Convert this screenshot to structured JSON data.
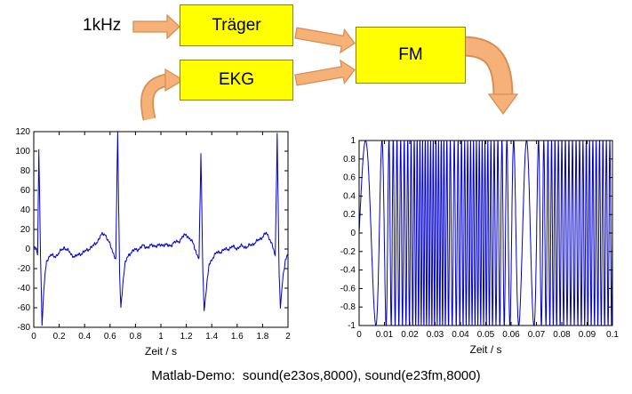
{
  "colors": {
    "box_fill": "#FFFF00",
    "box_border": "#8F8200",
    "arrow_fill": "#F6B178",
    "arrow_border": "#D98E52",
    "plot_line": "#0000CC",
    "axis": "#000000",
    "background": "#FFFFFF"
  },
  "diagram": {
    "input_label": "1kHz",
    "boxes": [
      {
        "id": "traeger",
        "label": "Träger"
      },
      {
        "id": "ekg",
        "label": "EKG"
      },
      {
        "id": "fm",
        "label": "FM"
      }
    ],
    "arrows": [
      "1khz-to-traeger",
      "feed-into-ekg",
      "traeger-to-fm",
      "ekg-to-fm",
      "fm-output-down"
    ]
  },
  "caption": "Matlab-Demo:  sound(e23os,8000), sound(e23fm,8000)",
  "chart_data": [
    {
      "id": "ekg_plot",
      "type": "line",
      "title": "",
      "series_name": "EKG signal",
      "xlabel": "Zeit / s",
      "ylabel": "",
      "xlim": [
        0,
        2
      ],
      "ylim": [
        -80,
        120
      ],
      "xticks": [
        0,
        0.2,
        0.4,
        0.6,
        0.8,
        1,
        1.2,
        1.4,
        1.6,
        1.8,
        2
      ],
      "xtick_labels": [
        "0",
        "0.2",
        "0.4",
        "0.6",
        "0.8",
        "1",
        "1.2",
        "1.4",
        "1.6",
        "1.8",
        "2"
      ],
      "yticks": [
        -80,
        -60,
        -40,
        -20,
        0,
        20,
        40,
        60,
        80,
        100,
        120
      ],
      "ytick_labels": [
        "-80",
        "-60",
        "-40",
        "-20",
        "0",
        "20",
        "40",
        "60",
        "80",
        "100",
        "120"
      ],
      "grid": false,
      "legend": null,
      "line_color": "#0000CC",
      "noise_amp": 2.2,
      "samples": 900,
      "keypoints": [
        [
          0,
          2
        ],
        [
          0.02,
          0
        ],
        [
          0.03,
          -8
        ],
        [
          0.04,
          103
        ],
        [
          0.055,
          -20
        ],
        [
          0.065,
          -78
        ],
        [
          0.08,
          -40
        ],
        [
          0.1,
          -12
        ],
        [
          0.13,
          -6
        ],
        [
          0.16,
          -8
        ],
        [
          0.2,
          -4
        ],
        [
          0.24,
          2
        ],
        [
          0.27,
          -2
        ],
        [
          0.3,
          -6
        ],
        [
          0.33,
          -8
        ],
        [
          0.36,
          -5
        ],
        [
          0.4,
          -3
        ],
        [
          0.44,
          1
        ],
        [
          0.47,
          3
        ],
        [
          0.5,
          8
        ],
        [
          0.53,
          14
        ],
        [
          0.56,
          16
        ],
        [
          0.58,
          10
        ],
        [
          0.6,
          4
        ],
        [
          0.62,
          -2
        ],
        [
          0.645,
          -10
        ],
        [
          0.66,
          118
        ],
        [
          0.675,
          -25
        ],
        [
          0.685,
          -60
        ],
        [
          0.7,
          -35
        ],
        [
          0.72,
          -14
        ],
        [
          0.75,
          -5
        ],
        [
          0.78,
          -2
        ],
        [
          0.82,
          0
        ],
        [
          0.86,
          3
        ],
        [
          0.9,
          2
        ],
        [
          0.94,
          4
        ],
        [
          0.98,
          3
        ],
        [
          1.02,
          5
        ],
        [
          1.06,
          3
        ],
        [
          1.1,
          6
        ],
        [
          1.14,
          8
        ],
        [
          1.17,
          12
        ],
        [
          1.2,
          15
        ],
        [
          1.23,
          10
        ],
        [
          1.26,
          4
        ],
        [
          1.28,
          -4
        ],
        [
          1.3,
          -10
        ],
        [
          1.315,
          97
        ],
        [
          1.33,
          -22
        ],
        [
          1.34,
          -62
        ],
        [
          1.36,
          -38
        ],
        [
          1.38,
          -16
        ],
        [
          1.41,
          -8
        ],
        [
          1.44,
          -4
        ],
        [
          1.48,
          -2
        ],
        [
          1.52,
          0
        ],
        [
          1.56,
          2
        ],
        [
          1.6,
          1
        ],
        [
          1.64,
          3
        ],
        [
          1.68,
          2
        ],
        [
          1.72,
          5
        ],
        [
          1.76,
          8
        ],
        [
          1.8,
          13
        ],
        [
          1.83,
          16
        ],
        [
          1.86,
          10
        ],
        [
          1.88,
          2
        ],
        [
          1.9,
          -8
        ],
        [
          1.915,
          120
        ],
        [
          1.93,
          -25
        ],
        [
          1.94,
          -60
        ],
        [
          1.96,
          -30
        ],
        [
          1.98,
          -10
        ],
        [
          2,
          -5
        ]
      ]
    },
    {
      "id": "fm_plot",
      "type": "line",
      "title": "",
      "series_name": "FM modulated signal",
      "xlabel": "Zeit / s",
      "ylabel": "",
      "xlim": [
        0,
        0.1
      ],
      "ylim": [
        -1,
        1
      ],
      "xticks": [
        0,
        0.01,
        0.02,
        0.03,
        0.04,
        0.05,
        0.06,
        0.07,
        0.08,
        0.09,
        0.1
      ],
      "xtick_labels": [
        "0",
        "0.01",
        "0.02",
        "0.03",
        "0.04",
        "0.05",
        "0.06",
        "0.07",
        "0.08",
        "0.09",
        "0.1"
      ],
      "yticks": [
        -1,
        -0.8,
        -0.6,
        -0.4,
        -0.2,
        0,
        0.2,
        0.4,
        0.6,
        0.8,
        1
      ],
      "ytick_labels": [
        "-1",
        "-0.8",
        "-0.6",
        "-0.4",
        "-0.2",
        "0",
        "0.2",
        "0.4",
        "0.6",
        "0.8",
        "1"
      ],
      "grid": false,
      "legend": null,
      "line_color": "#0000CC",
      "synth": {
        "kind": "fm",
        "amplitude": 1,
        "samples": 3200,
        "freq_profile": [
          [
            0,
            90
          ],
          [
            0.006,
            130
          ],
          [
            0.01,
            300
          ],
          [
            0.013,
            650
          ],
          [
            0.02,
            750
          ],
          [
            0.024,
            950
          ],
          [
            0.033,
            950
          ],
          [
            0.037,
            600
          ],
          [
            0.042,
            850
          ],
          [
            0.05,
            900
          ],
          [
            0.056,
            600
          ],
          [
            0.06,
            350
          ],
          [
            0.064,
            150
          ],
          [
            0.069,
            180
          ],
          [
            0.072,
            500
          ],
          [
            0.076,
            750
          ],
          [
            0.085,
            700
          ],
          [
            0.09,
            780
          ],
          [
            0.1,
            720
          ]
        ]
      }
    }
  ]
}
